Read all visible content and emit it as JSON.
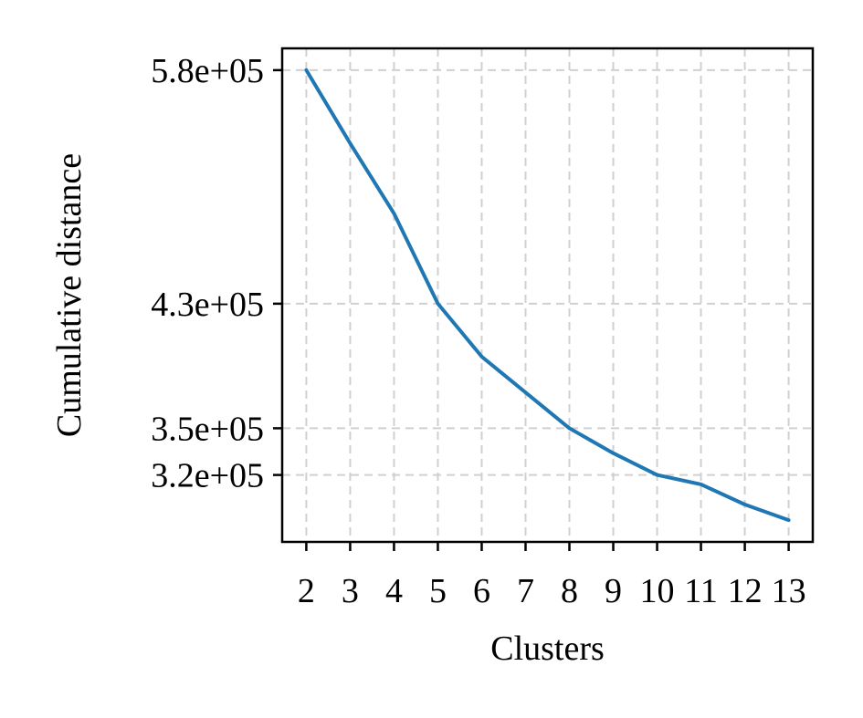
{
  "chart_data": {
    "type": "line",
    "title": "",
    "xlabel": "Clusters",
    "ylabel": "Cumulative distance",
    "x": [
      2,
      3,
      4,
      5,
      6,
      7,
      8,
      9,
      10,
      11,
      12,
      13
    ],
    "xticks": [
      "2",
      "3",
      "4",
      "5",
      "6",
      "7",
      "8",
      "9",
      "10",
      "11",
      "12",
      "13"
    ],
    "series": [
      {
        "values": [
          580000,
          533000,
          488000,
          430000,
          396000,
          373000,
          350000,
          334000,
          320000,
          314000,
          301000,
          291000
        ],
        "color": "#1f77b4"
      }
    ],
    "yticks": [
      {
        "value": 580000,
        "label": "5.8e+05"
      },
      {
        "value": 430000,
        "label": "4.3e+05"
      },
      {
        "value": 350000,
        "label": "3.5e+05"
      },
      {
        "value": 320000,
        "label": "3.2e+05"
      }
    ],
    "xlim": [
      1.45,
      13.55
    ],
    "ylim": [
      277000,
      594000
    ],
    "grid": true,
    "legend": "none"
  }
}
